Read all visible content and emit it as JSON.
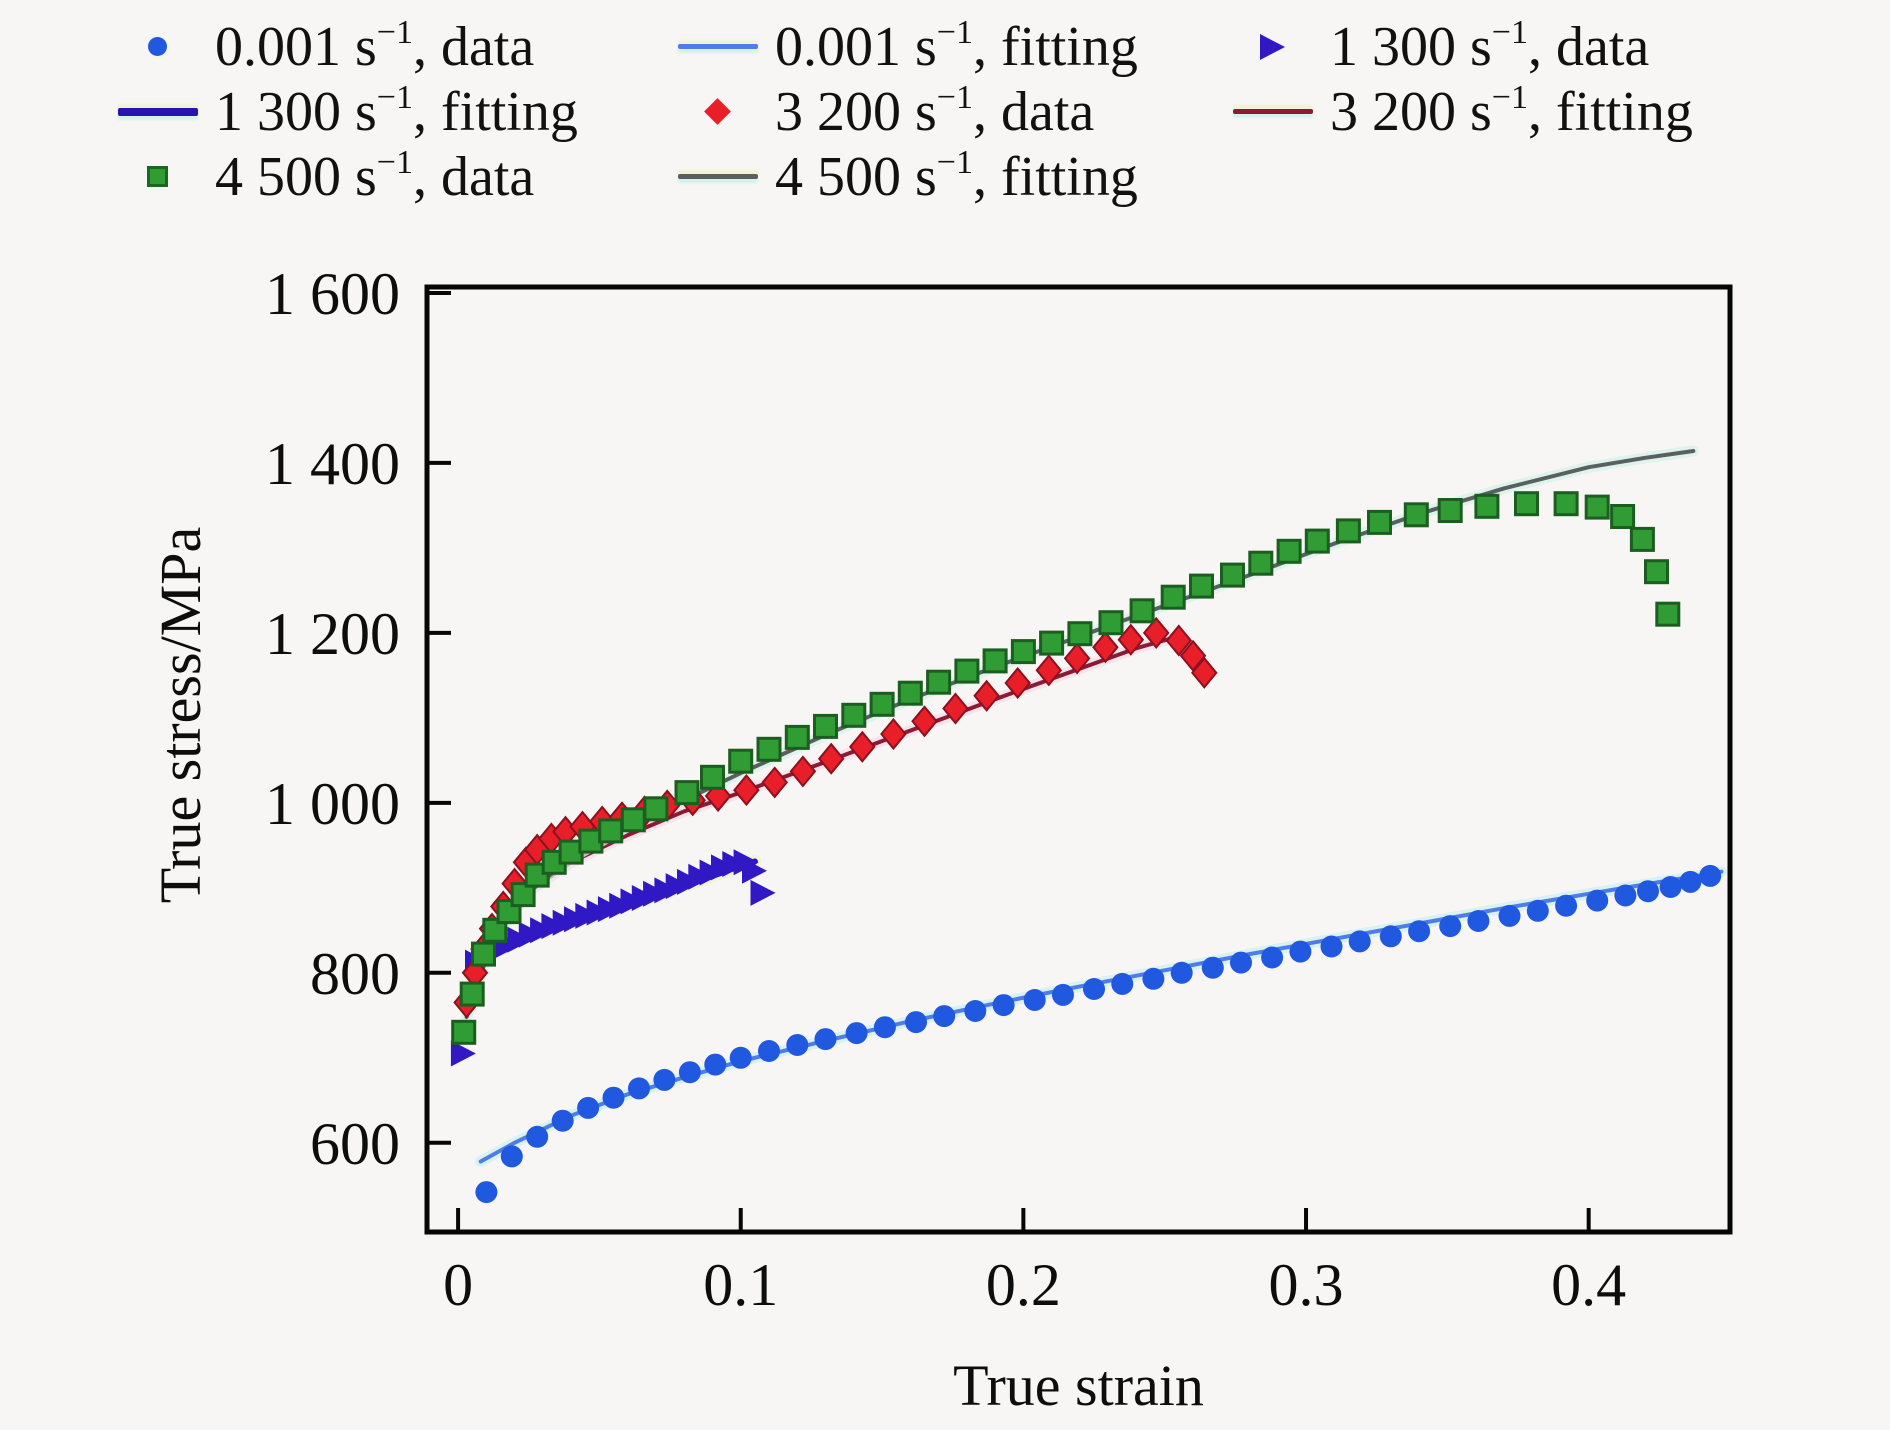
{
  "figure": {
    "background": "#f7f6f4"
  },
  "legend": {
    "position": "top",
    "items": [
      {
        "id": "d0001",
        "marker": "circle",
        "color": "#2158e0",
        "pre": "0.001 s",
        "sup": "−1",
        "post": ", data"
      },
      {
        "id": "f0001",
        "marker": "line",
        "color": "#4f7ce6",
        "pre": "0.001 s",
        "sup": "−1",
        "post": ", fitting"
      },
      {
        "id": "d1300",
        "marker": "triangle",
        "color": "#3018c4",
        "pre": "1 300 s",
        "sup": "−1",
        "post": ", data"
      },
      {
        "id": "f1300",
        "marker": "line-thick",
        "color": "#2812b2",
        "pre": "1 300 s",
        "sup": "−1",
        "post": ", fitting"
      },
      {
        "id": "d3200",
        "marker": "diamond",
        "color": "#e81e28",
        "pre": "3 200 s",
        "sup": "−1",
        "post": ", data"
      },
      {
        "id": "f3200",
        "marker": "line",
        "color": "#8c1a32",
        "pre": "3 200 s",
        "sup": "−1",
        "post": ", fitting"
      },
      {
        "id": "d4500",
        "marker": "square",
        "color": "#2f9c34",
        "pre": "4 500 s",
        "sup": "−1",
        "post": ", data"
      },
      {
        "id": "f4500",
        "marker": "line",
        "color": "#5a5f60",
        "pre": "4 500 s",
        "sup": "−1",
        "post": ", fitting"
      }
    ]
  },
  "chart_data": {
    "type": "scatter",
    "title": "",
    "xlabel": "True strain",
    "ylabel": "True stress/MPa",
    "xlim": [
      -0.011,
      0.45
    ],
    "ylim": [
      495,
      1607
    ],
    "grid": false,
    "legend_position": "top",
    "x_ticks": {
      "values": [
        0,
        0.1,
        0.2,
        0.3,
        0.4
      ],
      "labels": [
        "0",
        "0.1",
        "0.2",
        "0.3",
        "0.4"
      ]
    },
    "y_ticks": {
      "values": [
        600,
        800,
        1000,
        1200,
        1400,
        1600
      ],
      "labels": [
        "600",
        "800",
        "1 000",
        "1 200",
        "1 400",
        "1 600"
      ]
    },
    "series": [
      {
        "id": "f0001",
        "name": "0.001 s−1, fitting",
        "kind": "line",
        "color": "#4f7ce6",
        "halo": "#cdeff0",
        "width": 4,
        "points": [
          [
            0.008,
            578
          ],
          [
            0.02,
            600
          ],
          [
            0.04,
            632
          ],
          [
            0.06,
            657
          ],
          [
            0.08,
            677
          ],
          [
            0.1,
            696
          ],
          [
            0.13,
            720
          ],
          [
            0.16,
            743
          ],
          [
            0.19,
            764
          ],
          [
            0.22,
            784
          ],
          [
            0.25,
            803
          ],
          [
            0.28,
            822
          ],
          [
            0.31,
            840
          ],
          [
            0.34,
            858
          ],
          [
            0.37,
            876
          ],
          [
            0.4,
            893
          ],
          [
            0.42,
            904
          ],
          [
            0.44,
            915
          ],
          [
            0.447,
            919
          ]
        ]
      },
      {
        "id": "f1300",
        "name": "1 300 s−1, fitting",
        "kind": "line",
        "color": "#2812b2",
        "halo": "#eef3cd",
        "width": 6,
        "points": [
          [
            0.004,
            798
          ],
          [
            0.01,
            820
          ],
          [
            0.02,
            838
          ],
          [
            0.03,
            852
          ],
          [
            0.04,
            862
          ],
          [
            0.05,
            872
          ],
          [
            0.06,
            881
          ],
          [
            0.07,
            891
          ],
          [
            0.08,
            902
          ],
          [
            0.09,
            914
          ],
          [
            0.1,
            926
          ],
          [
            0.105,
            931
          ]
        ]
      },
      {
        "id": "f3200",
        "name": "3 200 s−1, fitting",
        "kind": "line",
        "color": "#8c1a32",
        "halo": "#f6dce8",
        "width": 4,
        "points": [
          [
            0.003,
            762
          ],
          [
            0.008,
            810
          ],
          [
            0.015,
            852
          ],
          [
            0.025,
            895
          ],
          [
            0.04,
            930
          ],
          [
            0.06,
            962
          ],
          [
            0.08,
            990
          ],
          [
            0.1,
            1012
          ],
          [
            0.13,
            1048
          ],
          [
            0.16,
            1085
          ],
          [
            0.19,
            1122
          ],
          [
            0.22,
            1158
          ],
          [
            0.24,
            1182
          ],
          [
            0.255,
            1196
          ]
        ]
      },
      {
        "id": "f4500",
        "name": "4 500 s−1, fitting",
        "kind": "line",
        "color": "#5a5f60",
        "halo": "#d5f2ea",
        "width": 4,
        "points": [
          [
            0.003,
            748
          ],
          [
            0.008,
            800
          ],
          [
            0.015,
            850
          ],
          [
            0.025,
            895
          ],
          [
            0.04,
            935
          ],
          [
            0.06,
            972
          ],
          [
            0.08,
            1003
          ],
          [
            0.1,
            1035
          ],
          [
            0.13,
            1080
          ],
          [
            0.16,
            1122
          ],
          [
            0.19,
            1160
          ],
          [
            0.22,
            1196
          ],
          [
            0.25,
            1232
          ],
          [
            0.28,
            1268
          ],
          [
            0.31,
            1305
          ],
          [
            0.34,
            1340
          ],
          [
            0.37,
            1370
          ],
          [
            0.4,
            1395
          ],
          [
            0.42,
            1406
          ],
          [
            0.437,
            1414
          ]
        ]
      },
      {
        "id": "d0001",
        "name": "0.001 s−1, data",
        "kind": "scatter",
        "marker": "circle",
        "color": "#2158e0",
        "stroke": "#1440a8",
        "points": [
          [
            0.01,
            542
          ],
          [
            0.019,
            584
          ],
          [
            0.028,
            607
          ],
          [
            0.037,
            626
          ],
          [
            0.046,
            641
          ],
          [
            0.055,
            653
          ],
          [
            0.064,
            664
          ],
          [
            0.073,
            674
          ],
          [
            0.082,
            683
          ],
          [
            0.091,
            692
          ],
          [
            0.1,
            700
          ],
          [
            0.11,
            708
          ],
          [
            0.12,
            715
          ],
          [
            0.13,
            722
          ],
          [
            0.141,
            729
          ],
          [
            0.151,
            736
          ],
          [
            0.162,
            742
          ],
          [
            0.172,
            749
          ],
          [
            0.183,
            755
          ],
          [
            0.193,
            762
          ],
          [
            0.204,
            768
          ],
          [
            0.214,
            774
          ],
          [
            0.225,
            781
          ],
          [
            0.235,
            787
          ],
          [
            0.246,
            793
          ],
          [
            0.256,
            800
          ],
          [
            0.267,
            806
          ],
          [
            0.277,
            812
          ],
          [
            0.288,
            818
          ],
          [
            0.298,
            825
          ],
          [
            0.309,
            831
          ],
          [
            0.319,
            837
          ],
          [
            0.33,
            843
          ],
          [
            0.34,
            849
          ],
          [
            0.351,
            855
          ],
          [
            0.361,
            861
          ],
          [
            0.372,
            867
          ],
          [
            0.382,
            873
          ],
          [
            0.392,
            879
          ],
          [
            0.403,
            885
          ],
          [
            0.413,
            891
          ],
          [
            0.421,
            896
          ],
          [
            0.429,
            901
          ],
          [
            0.436,
            907
          ],
          [
            0.443,
            914
          ]
        ]
      },
      {
        "id": "d1300",
        "name": "1 300 s−1, data",
        "kind": "scatter",
        "marker": "triangle",
        "color": "#3018c4",
        "points": [
          [
            0.001,
            705
          ],
          [
            0.006,
            812
          ],
          [
            0.009,
            820
          ],
          [
            0.013,
            827
          ],
          [
            0.017,
            833
          ],
          [
            0.021,
            839
          ],
          [
            0.025,
            845
          ],
          [
            0.029,
            850
          ],
          [
            0.033,
            855
          ],
          [
            0.037,
            859
          ],
          [
            0.041,
            863
          ],
          [
            0.045,
            867
          ],
          [
            0.049,
            871
          ],
          [
            0.053,
            875
          ],
          [
            0.057,
            879
          ],
          [
            0.061,
            884
          ],
          [
            0.065,
            888
          ],
          [
            0.069,
            893
          ],
          [
            0.073,
            897
          ],
          [
            0.077,
            902
          ],
          [
            0.081,
            907
          ],
          [
            0.085,
            913
          ],
          [
            0.089,
            918
          ],
          [
            0.093,
            924
          ],
          [
            0.097,
            928
          ],
          [
            0.101,
            930
          ],
          [
            0.104,
            920
          ],
          [
            0.107,
            894
          ]
        ]
      },
      {
        "id": "d3200",
        "name": "3 200 s−1, data",
        "kind": "scatter",
        "marker": "diamond",
        "color": "#e81e28",
        "stroke": "#8c1020",
        "points": [
          [
            0.003,
            765
          ],
          [
            0.006,
            800
          ],
          [
            0.009,
            828
          ],
          [
            0.012,
            852
          ],
          [
            0.016,
            878
          ],
          [
            0.02,
            905
          ],
          [
            0.024,
            930
          ],
          [
            0.028,
            945
          ],
          [
            0.033,
            958
          ],
          [
            0.038,
            966
          ],
          [
            0.044,
            972
          ],
          [
            0.051,
            978
          ],
          [
            0.058,
            983
          ],
          [
            0.066,
            990
          ],
          [
            0.074,
            997
          ],
          [
            0.083,
            1003
          ],
          [
            0.092,
            1008
          ],
          [
            0.102,
            1015
          ],
          [
            0.112,
            1024
          ],
          [
            0.122,
            1037
          ],
          [
            0.132,
            1052
          ],
          [
            0.143,
            1066
          ],
          [
            0.154,
            1081
          ],
          [
            0.165,
            1096
          ],
          [
            0.176,
            1111
          ],
          [
            0.187,
            1126
          ],
          [
            0.198,
            1141
          ],
          [
            0.209,
            1156
          ],
          [
            0.219,
            1170
          ],
          [
            0.229,
            1183
          ],
          [
            0.238,
            1192
          ],
          [
            0.247,
            1200
          ],
          [
            0.255,
            1191
          ],
          [
            0.26,
            1173
          ],
          [
            0.264,
            1153
          ]
        ]
      },
      {
        "id": "d4500",
        "name": "4 500 s−1, data",
        "kind": "scatter",
        "marker": "square",
        "color": "#2f9c34",
        "stroke": "#1b5e20",
        "points": [
          [
            0.002,
            730
          ],
          [
            0.005,
            775
          ],
          [
            0.009,
            822
          ],
          [
            0.013,
            850
          ],
          [
            0.018,
            872
          ],
          [
            0.023,
            892
          ],
          [
            0.028,
            915
          ],
          [
            0.034,
            930
          ],
          [
            0.04,
            942
          ],
          [
            0.047,
            955
          ],
          [
            0.054,
            967
          ],
          [
            0.062,
            980
          ],
          [
            0.07,
            993
          ],
          [
            0.081,
            1012
          ],
          [
            0.09,
            1030
          ],
          [
            0.1,
            1049
          ],
          [
            0.11,
            1063
          ],
          [
            0.12,
            1077
          ],
          [
            0.13,
            1090
          ],
          [
            0.14,
            1103
          ],
          [
            0.15,
            1116
          ],
          [
            0.16,
            1129
          ],
          [
            0.17,
            1142
          ],
          [
            0.18,
            1155
          ],
          [
            0.19,
            1167
          ],
          [
            0.2,
            1178
          ],
          [
            0.21,
            1188
          ],
          [
            0.22,
            1199
          ],
          [
            0.231,
            1212
          ],
          [
            0.242,
            1226
          ],
          [
            0.253,
            1242
          ],
          [
            0.263,
            1255
          ],
          [
            0.274,
            1268
          ],
          [
            0.284,
            1282
          ],
          [
            0.294,
            1296
          ],
          [
            0.304,
            1308
          ],
          [
            0.315,
            1320
          ],
          [
            0.326,
            1330
          ],
          [
            0.339,
            1339
          ],
          [
            0.351,
            1344
          ],
          [
            0.364,
            1349
          ],
          [
            0.378,
            1352
          ],
          [
            0.392,
            1352
          ],
          [
            0.403,
            1348
          ],
          [
            0.412,
            1337
          ],
          [
            0.419,
            1310
          ],
          [
            0.424,
            1272
          ],
          [
            0.428,
            1222
          ]
        ]
      }
    ]
  }
}
